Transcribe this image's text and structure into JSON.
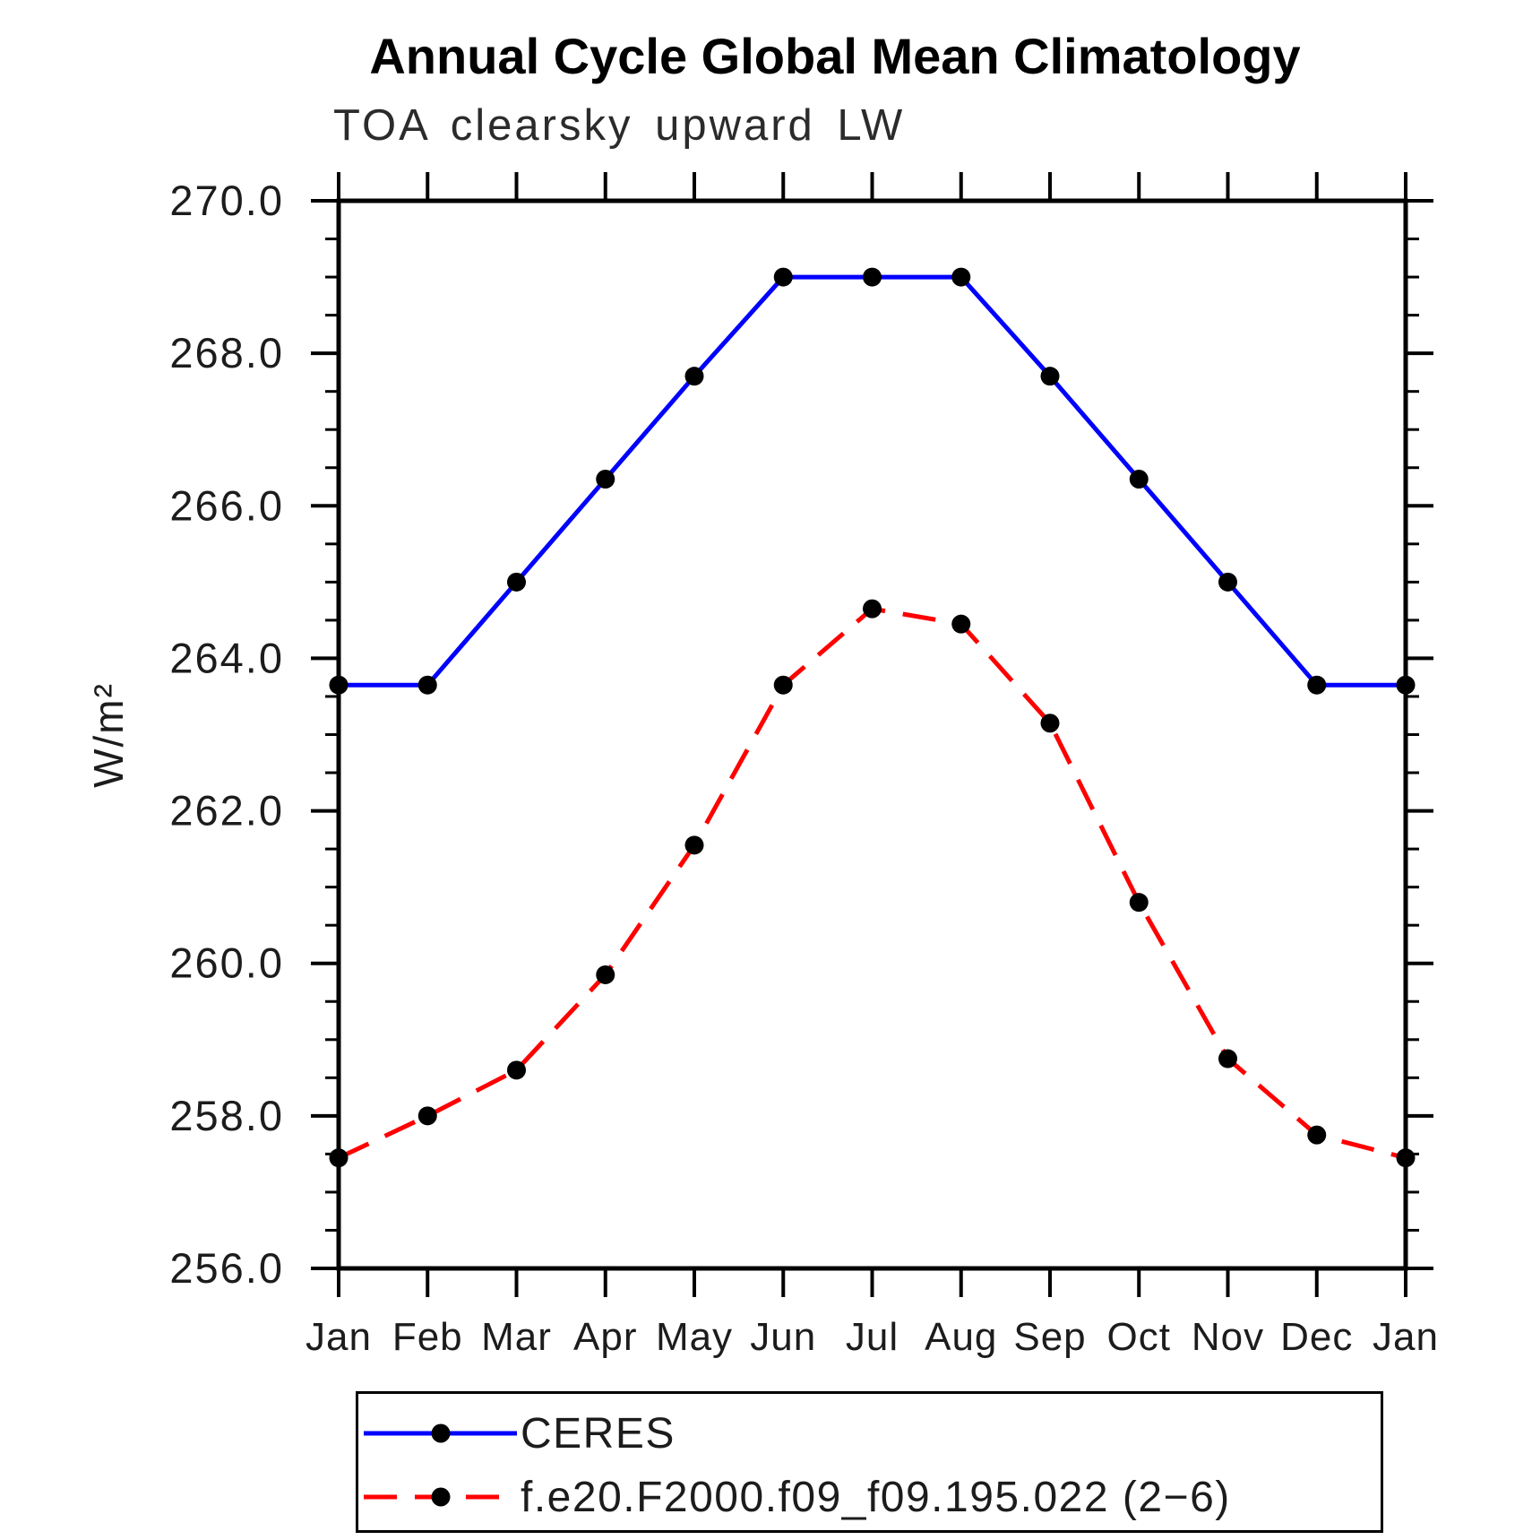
{
  "header": {
    "title": "Annual Cycle Global Mean Climatology",
    "subtitle": "TOA clearsky upward LW"
  },
  "chart_data": {
    "type": "line",
    "x_categories": [
      "Jan",
      "Feb",
      "Mar",
      "Apr",
      "May",
      "Jun",
      "Jul",
      "Aug",
      "Sep",
      "Oct",
      "Nov",
      "Dec",
      "Jan"
    ],
    "xlabel": "",
    "ylabel": "W/m²",
    "ylim": [
      256.0,
      270.0
    ],
    "y_major_tick_step": 2.0,
    "y_minor_tick_step": 0.5,
    "y_tick_labels": [
      "256.0",
      "258.0",
      "260.0",
      "262.0",
      "264.0",
      "266.0",
      "268.0",
      "270.0"
    ],
    "grid": false,
    "legend_position": "bottom",
    "series": [
      {
        "name": "CERES",
        "color": "#0000ff",
        "line_style": "solid",
        "marker": "filled-circle",
        "marker_color": "#000000",
        "values": [
          263.65,
          263.65,
          265.0,
          266.35,
          267.7,
          269.0,
          269.0,
          269.0,
          267.7,
          266.35,
          265.0,
          263.65,
          263.65
        ]
      },
      {
        "name": "f.e20.F2000.f09_f09.195.022 (2−6)",
        "color": "#ff0000",
        "line_style": "dashed",
        "marker": "filled-circle",
        "marker_color": "#000000",
        "values": [
          257.45,
          258.0,
          258.6,
          259.85,
          261.55,
          263.65,
          264.65,
          264.45,
          263.15,
          260.8,
          258.75,
          257.75,
          257.45
        ]
      }
    ]
  },
  "colors": {
    "axis": "#000000",
    "tick_labels": "#1c1c1c",
    "title": "#000000"
  }
}
